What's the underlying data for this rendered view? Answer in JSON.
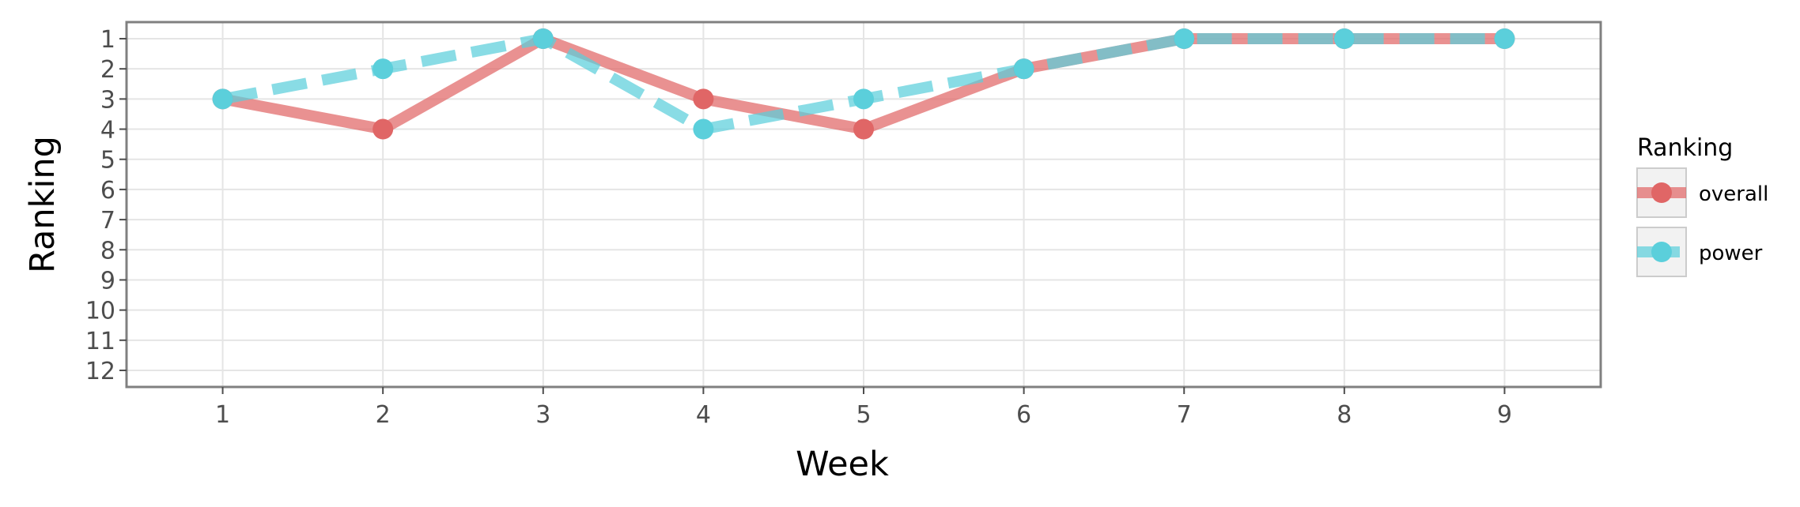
{
  "chart_data": {
    "type": "line",
    "xlabel": "Week",
    "ylabel": "Ranking",
    "x": [
      1,
      2,
      3,
      4,
      5,
      6,
      7,
      8,
      9
    ],
    "xlim": [
      0.4,
      9.6
    ],
    "ylim": [
      12.55,
      0.45
    ],
    "y_reversed": true,
    "yticks": [
      1,
      2,
      3,
      4,
      5,
      6,
      7,
      8,
      9,
      10,
      11,
      12
    ],
    "grid": true,
    "legend": {
      "title": "Ranking",
      "position": "right"
    },
    "series": [
      {
        "name": "overall",
        "values": [
          3,
          4,
          1,
          3,
          4,
          2,
          1,
          1,
          1
        ],
        "color": "#E06666",
        "line_style": "solid"
      },
      {
        "name": "power",
        "values": [
          3,
          2,
          1,
          4,
          3,
          2,
          1,
          1,
          1
        ],
        "color": "#5BCFDB",
        "line_style": "dashed"
      }
    ]
  }
}
